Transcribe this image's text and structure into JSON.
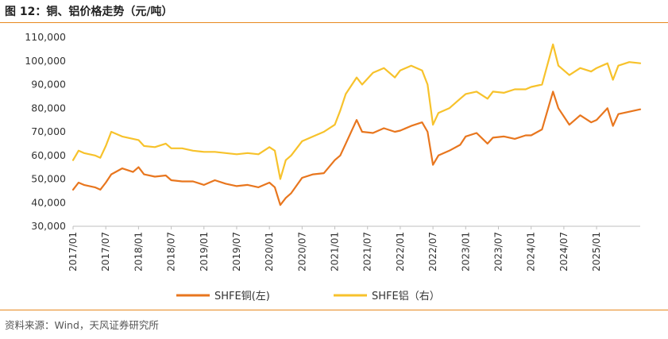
{
  "figure": {
    "title": "图 12：铜、铝价格走势（元/吨）",
    "source": "资料来源：Wind，天风证券研究所"
  },
  "colors": {
    "copper": "#e8761e",
    "aluminum": "#f7c22b",
    "axis": "#bfbfbf",
    "rule": "#e8891e"
  },
  "chart_data": {
    "type": "line",
    "title": "图 12：铜、铝价格走势（元/吨）",
    "ylim": [
      30000,
      110000
    ],
    "yticks": [
      "30,000",
      "40,000",
      "50,000",
      "60,000",
      "70,000",
      "80,000",
      "90,000",
      "100,000",
      "110,000"
    ],
    "grid": false,
    "legend_position": "bottom",
    "x_tick_labels": [
      "2017/01",
      "2017/07",
      "2018/01",
      "2018/07",
      "2019/01",
      "2019/07",
      "2020/01",
      "2020/07",
      "2021/01",
      "2021/07",
      "2022/01",
      "2022/07",
      "2023/01",
      "2023/07",
      "2024/01",
      "2024/07",
      "2025/01"
    ],
    "x_range": [
      "2017/01",
      "2025/09"
    ],
    "series": [
      {
        "name": "SHFE铜(左)",
        "axis": "left",
        "x": [
          "2017/01",
          "2017/02",
          "2017/03",
          "2017/05",
          "2017/06",
          "2017/07",
          "2017/08",
          "2017/10",
          "2017/12",
          "2018/01",
          "2018/02",
          "2018/04",
          "2018/06",
          "2018/07",
          "2018/09",
          "2018/11",
          "2019/01",
          "2019/03",
          "2019/05",
          "2019/07",
          "2019/09",
          "2019/11",
          "2020/01",
          "2020/02",
          "2020/03",
          "2020/04",
          "2020/05",
          "2020/07",
          "2020/09",
          "2020/11",
          "2021/01",
          "2021/02",
          "2021/03",
          "2021/05",
          "2021/06",
          "2021/08",
          "2021/10",
          "2021/12",
          "2022/01",
          "2022/03",
          "2022/05",
          "2022/06",
          "2022/07",
          "2022/08",
          "2022/10",
          "2022/12",
          "2023/01",
          "2023/03",
          "2023/05",
          "2023/06",
          "2023/08",
          "2023/10",
          "2023/12",
          "2024/01",
          "2024/03",
          "2024/05",
          "2024/06",
          "2024/08",
          "2024/10",
          "2024/12",
          "2025/01",
          "2025/03",
          "2025/04",
          "2025/05",
          "2025/07",
          "2025/09"
        ],
        "values": [
          45500,
          48500,
          47500,
          46500,
          45500,
          48500,
          52000,
          54500,
          53000,
          55000,
          52000,
          51000,
          51500,
          49500,
          49000,
          49000,
          47500,
          49500,
          48000,
          47000,
          47500,
          46500,
          48500,
          46500,
          39000,
          42000,
          44000,
          50500,
          52000,
          52500,
          58000,
          60000,
          65000,
          75000,
          70000,
          69500,
          71500,
          70000,
          70500,
          72500,
          74000,
          70000,
          56000,
          60000,
          62000,
          64500,
          68000,
          69500,
          65000,
          67500,
          68000,
          67000,
          68500,
          68500,
          71000,
          87000,
          80000,
          73000,
          77000,
          74000,
          75000,
          80000,
          72500,
          77500,
          78500,
          79500
        ]
      },
      {
        "name": "SHFE铝（右）",
        "axis": "right",
        "x": [
          "2017/01",
          "2017/02",
          "2017/03",
          "2017/05",
          "2017/06",
          "2017/07",
          "2017/08",
          "2017/10",
          "2017/12",
          "2018/01",
          "2018/02",
          "2018/04",
          "2018/06",
          "2018/07",
          "2018/09",
          "2018/11",
          "2019/01",
          "2019/03",
          "2019/05",
          "2019/07",
          "2019/09",
          "2019/11",
          "2020/01",
          "2020/02",
          "2020/03",
          "2020/04",
          "2020/05",
          "2020/07",
          "2020/09",
          "2020/11",
          "2021/01",
          "2021/02",
          "2021/03",
          "2021/05",
          "2021/06",
          "2021/08",
          "2021/10",
          "2021/12",
          "2022/01",
          "2022/03",
          "2022/05",
          "2022/06",
          "2022/07",
          "2022/08",
          "2022/10",
          "2022/12",
          "2023/01",
          "2023/03",
          "2023/05",
          "2023/06",
          "2023/08",
          "2023/10",
          "2023/12",
          "2024/01",
          "2024/03",
          "2024/05",
          "2024/06",
          "2024/08",
          "2024/10",
          "2024/12",
          "2025/01",
          "2025/03",
          "2025/04",
          "2025/05",
          "2025/07",
          "2025/09"
        ],
        "values": [
          58000,
          62000,
          61000,
          60000,
          59000,
          64000,
          70000,
          68000,
          67000,
          66500,
          64000,
          63500,
          65000,
          63000,
          63000,
          62000,
          61500,
          61500,
          61000,
          60500,
          61000,
          60500,
          63500,
          62000,
          50000,
          58000,
          60000,
          66000,
          68000,
          70000,
          73000,
          79000,
          86000,
          93000,
          90000,
          95000,
          97000,
          93000,
          96000,
          98000,
          96000,
          90000,
          73000,
          78000,
          80000,
          84000,
          86000,
          87000,
          84000,
          87000,
          86500,
          88000,
          88000,
          89000,
          90000,
          107000,
          98000,
          94000,
          97000,
          95500,
          97000,
          99000,
          92000,
          98000,
          99500,
          99000
        ]
      }
    ]
  },
  "legend": [
    {
      "label": "SHFE铜(左)",
      "color": "#e8761e"
    },
    {
      "label": "SHFE铝（右）",
      "color": "#f7c22b"
    }
  ]
}
